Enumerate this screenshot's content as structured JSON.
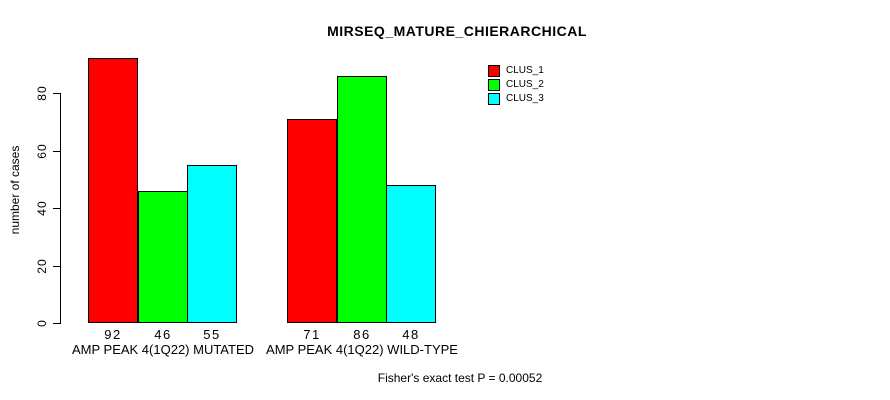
{
  "chart_data": {
    "type": "bar",
    "title": "MIRSEQ_MATURE_CHIERARCHICAL",
    "ylabel": "number of cases",
    "xlabel": "",
    "categories": [
      "AMP PEAK 4(1Q22) MUTATED",
      "AMP PEAK 4(1Q22) WILD-TYPE"
    ],
    "series": [
      {
        "name": "CLUS_1",
        "color": "#FF0000",
        "values": [
          92,
          71
        ]
      },
      {
        "name": "CLUS_2",
        "color": "#00FF00",
        "values": [
          46,
          86
        ]
      },
      {
        "name": "CLUS_3",
        "color": "#00FFFF",
        "values": [
          55,
          48
        ]
      }
    ],
    "value_labels": [
      [
        92,
        46,
        55
      ],
      [
        71,
        86,
        48
      ]
    ],
    "yticks": [
      0,
      20,
      40,
      60,
      80
    ],
    "ylim": [
      0,
      92
    ],
    "grid": false,
    "legend_position": "top-right",
    "bar_border_color": "#000000",
    "annotation": "Fisher's exact test P = 0.00052"
  }
}
